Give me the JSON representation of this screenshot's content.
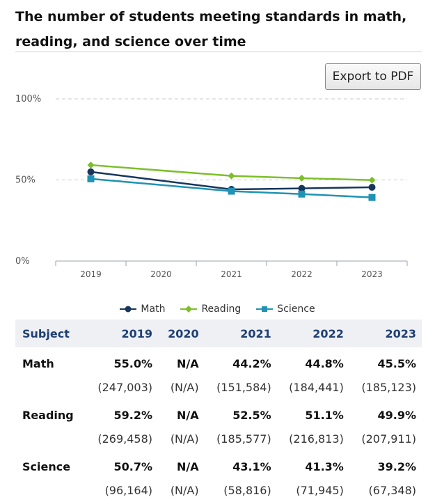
{
  "page": {
    "title": "The number of students meeting standards in math, reading, and science over time",
    "export_label": "Export to PDF"
  },
  "chart_data": {
    "type": "line",
    "x": [
      "2019",
      "2020",
      "2021",
      "2022",
      "2023"
    ],
    "y_ticks": [
      "0%",
      "50%",
      "100%"
    ],
    "ylim": [
      0,
      100
    ],
    "grid": "dashed at 50% and 100%",
    "legend_position": "bottom-center",
    "series": [
      {
        "name": "Math",
        "color": "#17365d",
        "marker": "circle",
        "values": [
          55.0,
          null,
          44.2,
          44.8,
          45.5
        ]
      },
      {
        "name": "Reading",
        "color": "#7cbf2a",
        "marker": "diamond",
        "values": [
          59.2,
          null,
          52.5,
          51.1,
          49.9
        ]
      },
      {
        "name": "Science",
        "color": "#1f93b3",
        "marker": "square",
        "values": [
          50.7,
          null,
          43.1,
          41.3,
          39.2
        ]
      }
    ]
  },
  "table": {
    "headers": [
      "Subject",
      "2019",
      "2020",
      "2021",
      "2022",
      "2023"
    ],
    "rows": [
      {
        "subject": "Math",
        "pct": [
          "55.0%",
          "N/A",
          "44.2%",
          "44.8%",
          "45.5%"
        ],
        "cnt": [
          "(247,003)",
          "(N/A)",
          "(151,584)",
          "(184,441)",
          "(185,123)"
        ]
      },
      {
        "subject": "Reading",
        "pct": [
          "59.2%",
          "N/A",
          "52.5%",
          "51.1%",
          "49.9%"
        ],
        "cnt": [
          "(269,458)",
          "(N/A)",
          "(185,577)",
          "(216,813)",
          "(207,911)"
        ]
      },
      {
        "subject": "Science",
        "pct": [
          "50.7%",
          "N/A",
          "43.1%",
          "41.3%",
          "39.2%"
        ],
        "cnt": [
          "(96,164)",
          "(N/A)",
          "(58,816)",
          "(71,945)",
          "(67,348)"
        ]
      }
    ]
  }
}
